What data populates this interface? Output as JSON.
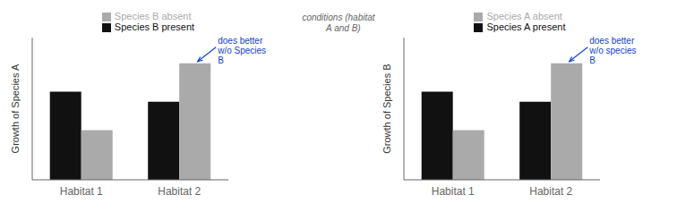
{
  "chart_data": [
    {
      "type": "bar",
      "categories": [
        "Habitat 1",
        "Habitat 2"
      ],
      "series": [
        {
          "name": "Species B present",
          "color": "#111111",
          "values": [
            0.62,
            0.55
          ]
        },
        {
          "name": "Species B absent",
          "color": "#aaaaaa",
          "values": [
            0.35,
            0.82
          ]
        }
      ],
      "ylabel": "Growth of Species A",
      "ylim": [
        0,
        1
      ],
      "tick_labels": "x",
      "grid": false,
      "legend": "top",
      "annotations": [
        {
          "text": "does better\nw/o Species\nB",
          "category": "Habitat 2",
          "series": "Species B absent",
          "color": "#1144cc"
        }
      ]
    },
    {
      "type": "bar",
      "categories": [
        "Habitat 1",
        "Habitat 2"
      ],
      "series": [
        {
          "name": "Species A present",
          "color": "#111111",
          "values": [
            0.62,
            0.55
          ]
        },
        {
          "name": "Species A absent",
          "color": "#aaaaaa",
          "values": [
            0.35,
            0.82
          ]
        }
      ],
      "ylabel": "Growth of Species B",
      "ylim": [
        0,
        1
      ],
      "tick_labels": "x",
      "grid": false,
      "legend": "top",
      "annotations": [
        {
          "text": "does better\nw/o species\nB",
          "category": "Habitat 2",
          "series": "Species A absent",
          "color": "#1144cc"
        }
      ]
    }
  ],
  "annotations": [
    {
      "text": "conditions (habitat\n    A and B)",
      "color": "#666666"
    }
  ]
}
